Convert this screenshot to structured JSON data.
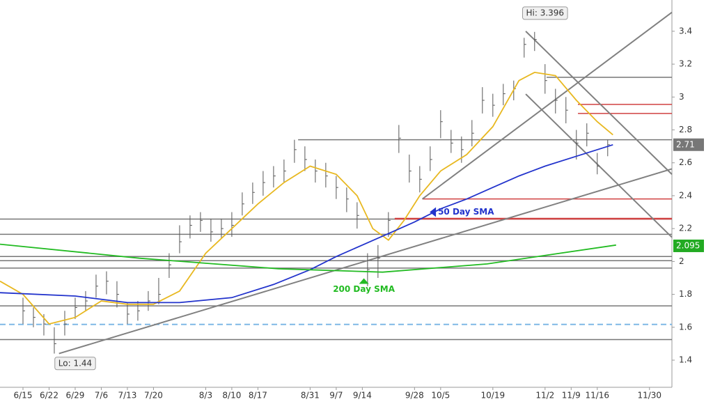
{
  "chart_data": {
    "type": "ohlc",
    "xlim": [
      -4.4,
      124.3
    ],
    "ylim": [
      1.235,
      3.59
    ],
    "xticks": [
      {
        "value": 0,
        "label": "6/15"
      },
      {
        "value": 5,
        "label": "6/22"
      },
      {
        "value": 10,
        "label": "6/29"
      },
      {
        "value": 15,
        "label": "7/6"
      },
      {
        "value": 20,
        "label": "7/13"
      },
      {
        "value": 25,
        "label": "7/20"
      },
      {
        "value": 35,
        "label": "8/3"
      },
      {
        "value": 40,
        "label": "8/10"
      },
      {
        "value": 45,
        "label": "8/17"
      },
      {
        "value": 55,
        "label": "8/31"
      },
      {
        "value": 60,
        "label": "9/7"
      },
      {
        "value": 65,
        "label": "9/14"
      },
      {
        "value": 75,
        "label": "9/28"
      },
      {
        "value": 80,
        "label": "10/5"
      },
      {
        "value": 90,
        "label": "10/19"
      },
      {
        "value": 100,
        "label": "11/2"
      },
      {
        "value": 105,
        "label": "11/9"
      },
      {
        "value": 110,
        "label": "11/16"
      },
      {
        "value": 120,
        "label": "11/30"
      }
    ],
    "yticks": [
      1.4,
      1.6,
      1.8,
      2,
      2.2,
      2.4,
      2.6,
      2.8,
      3,
      3.2,
      3.4
    ],
    "bars": {
      "color": "#555555",
      "x": [
        0,
        2,
        4,
        6,
        8,
        10,
        12,
        14,
        16,
        18,
        20,
        22,
        24,
        26,
        28,
        30,
        32,
        34,
        36,
        38,
        40,
        42,
        44,
        46,
        48,
        50,
        52,
        54,
        56,
        58,
        60,
        62,
        64,
        66,
        68,
        70,
        72,
        74,
        76,
        78,
        80,
        82,
        84,
        86,
        88,
        90,
        92,
        94,
        96,
        98,
        100,
        102,
        104,
        106,
        108,
        110,
        112
      ],
      "high": [
        1.78,
        1.72,
        1.68,
        1.6,
        1.7,
        1.78,
        1.82,
        1.92,
        1.94,
        1.88,
        1.75,
        1.76,
        1.82,
        1.9,
        2.05,
        2.22,
        2.28,
        2.3,
        2.26,
        2.26,
        2.3,
        2.42,
        2.48,
        2.55,
        2.58,
        2.62,
        2.74,
        2.7,
        2.62,
        2.6,
        2.52,
        2.45,
        2.36,
        2.05,
        2.1,
        2.3,
        2.83,
        2.65,
        2.58,
        2.7,
        2.92,
        2.8,
        2.76,
        2.86,
        3.06,
        3.02,
        3.08,
        3.1,
        3.36,
        3.396,
        3.2,
        3.05,
        3.0,
        2.8,
        2.84,
        2.66,
        2.74
      ],
      "low": [
        1.62,
        1.6,
        1.55,
        1.44,
        1.55,
        1.65,
        1.7,
        1.78,
        1.8,
        1.72,
        1.62,
        1.64,
        1.7,
        1.74,
        1.9,
        2.05,
        2.14,
        2.18,
        2.12,
        2.14,
        2.15,
        2.28,
        2.35,
        2.4,
        2.45,
        2.48,
        2.6,
        2.55,
        2.48,
        2.45,
        2.38,
        2.3,
        2.2,
        1.85,
        1.9,
        2.15,
        2.66,
        2.48,
        2.42,
        2.55,
        2.75,
        2.66,
        2.6,
        2.7,
        2.9,
        2.88,
        2.95,
        2.98,
        3.24,
        3.28,
        3.02,
        2.9,
        2.84,
        2.62,
        2.7,
        2.53,
        2.64
      ],
      "close": [
        1.7,
        1.66,
        1.62,
        1.5,
        1.62,
        1.72,
        1.76,
        1.85,
        1.88,
        1.8,
        1.68,
        1.7,
        1.76,
        1.8,
        1.98,
        2.12,
        2.22,
        2.25,
        2.18,
        2.2,
        2.22,
        2.35,
        2.42,
        2.48,
        2.52,
        2.55,
        2.68,
        2.62,
        2.55,
        2.52,
        2.45,
        2.38,
        2.28,
        1.95,
        2.02,
        2.25,
        2.75,
        2.55,
        2.5,
        2.62,
        2.85,
        2.72,
        2.68,
        2.78,
        2.98,
        2.95,
        3.02,
        3.05,
        3.32,
        3.35,
        3.1,
        2.98,
        2.92,
        2.72,
        2.78,
        2.58,
        2.71
      ]
    },
    "series": [
      {
        "color": "#e8b820",
        "x": [
          -4.4,
          0,
          5,
          10,
          15,
          20,
          25,
          30,
          35,
          40,
          45,
          50,
          55,
          60,
          64,
          67,
          70,
          73,
          76,
          80,
          85,
          90,
          95,
          98,
          102,
          106,
          110,
          113
        ],
        "values": [
          1.88,
          1.8,
          1.62,
          1.66,
          1.76,
          1.74,
          1.74,
          1.82,
          2.05,
          2.2,
          2.35,
          2.48,
          2.58,
          2.53,
          2.4,
          2.2,
          2.13,
          2.25,
          2.4,
          2.55,
          2.65,
          2.82,
          3.1,
          3.15,
          3.13,
          2.98,
          2.85,
          2.77
        ]
      },
      {
        "name": "50 Day SMA",
        "color": "#2233cc",
        "label_at": [
          79.5,
          2.3
        ],
        "arrow": "left",
        "x": [
          -4.4,
          10,
          20,
          30,
          40,
          48,
          55,
          60,
          65,
          70,
          75,
          80,
          85,
          90,
          95,
          100,
          106,
          113
        ],
        "values": [
          1.81,
          1.79,
          1.75,
          1.75,
          1.78,
          1.86,
          1.95,
          2.03,
          2.1,
          2.17,
          2.24,
          2.32,
          2.38,
          2.45,
          2.52,
          2.58,
          2.64,
          2.71
        ]
      },
      {
        "name": "200 Day SMA",
        "color": "#22bb22",
        "label_at": [
          65.3,
          1.83
        ],
        "arrow": "up",
        "x": [
          -4.4,
          22.3,
          48.9,
          68.9,
          88.9,
          113.6
        ],
        "values": [
          2.105,
          2.02,
          1.956,
          1.935,
          1.985,
          2.1
        ]
      }
    ],
    "hlines": [
      {
        "value": 2.74,
        "from": 52.7,
        "color": "#777777"
      },
      {
        "value": 3.12,
        "from": 100.3,
        "color": "#777777"
      },
      {
        "value": 2.258,
        "color": "#777777"
      },
      {
        "value": 2.165,
        "color": "#777777"
      },
      {
        "value": 2.03,
        "color": "#777777"
      },
      {
        "value": 2.005,
        "color": "#777777"
      },
      {
        "value": 1.96,
        "color": "#777777"
      },
      {
        "value": 1.73,
        "color": "#777777"
      },
      {
        "value": 1.525,
        "color": "#777777"
      },
      {
        "value": 1.617,
        "color": "#7fb8e6",
        "dashed": true
      },
      {
        "value": 2.955,
        "from": 106.3,
        "color": "#d04040"
      },
      {
        "value": 2.9,
        "from": 106.3,
        "color": "#d04040"
      },
      {
        "value": 2.38,
        "from": 76.5,
        "color": "#d04040"
      },
      {
        "value": 2.26,
        "from": 71.2,
        "color": "#d04040",
        "bold": true
      }
    ],
    "trendlines": [
      {
        "x": [
          6.9,
          124.3
        ],
        "y": [
          1.44,
          2.563
        ]
      },
      {
        "x": [
          76.5,
          124.3
        ],
        "y": [
          2.38,
          3.515
        ]
      },
      {
        "x": [
          96.3,
          124.3
        ],
        "y": [
          3.4,
          2.53
        ]
      },
      {
        "x": [
          96.3,
          124.3
        ],
        "y": [
          3.018,
          2.147
        ]
      }
    ],
    "annotations": [
      {
        "text": "Hi: 3.396",
        "x": 100,
        "y": 3.51
      },
      {
        "text": "Lo: 1.44",
        "x": 10,
        "y": 1.38
      }
    ],
    "price_tags": [
      {
        "value": 2.71,
        "color": "#777777"
      },
      {
        "value": 2.095,
        "color": "#22aa22"
      }
    ]
  }
}
